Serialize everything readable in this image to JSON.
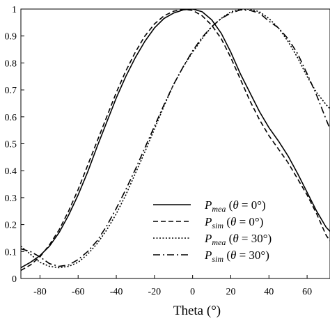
{
  "chart_data": {
    "type": "line",
    "title": "",
    "xlabel": "Theta (°)",
    "ylabel": "",
    "xlim": [
      -90,
      72
    ],
    "ylim": [
      0,
      1
    ],
    "xticks": [
      -80,
      -60,
      -40,
      -20,
      0,
      20,
      40,
      60
    ],
    "xtick_labels": [
      "-80",
      "-60",
      "-40",
      "-20",
      "0",
      "20",
      "40",
      "60"
    ],
    "yticks": [
      0,
      0.1,
      0.2,
      0.3,
      0.4,
      0.5,
      0.6,
      0.7,
      0.8,
      0.9,
      1
    ],
    "ytick_labels": [
      "0",
      "0.1",
      "0.2",
      "0.3",
      "0.4",
      "0.5",
      "0.6",
      "0.7",
      "0.8",
      "0.9",
      "1"
    ],
    "grid": false,
    "legend_placement": "bottom-right",
    "series": [
      {
        "name": "P_mea (θ = 0°)",
        "legend": {
          "main": "P",
          "sub": "mea",
          "cond": "θ",
          "value": "= 0°"
        },
        "style": "solid",
        "x": [
          -90,
          -85,
          -80,
          -75,
          -70,
          -65,
          -60,
          -55,
          -50,
          -45,
          -40,
          -35,
          -30,
          -25,
          -20,
          -15,
          -10,
          -5,
          0,
          5,
          10,
          15,
          20,
          25,
          30,
          35,
          40,
          45,
          50,
          55,
          60,
          65,
          70,
          72
        ],
        "y": [
          0.04,
          0.06,
          0.085,
          0.12,
          0.17,
          0.235,
          0.31,
          0.395,
          0.49,
          0.58,
          0.67,
          0.75,
          0.82,
          0.88,
          0.93,
          0.965,
          0.985,
          0.997,
          1.0,
          0.99,
          0.96,
          0.91,
          0.84,
          0.76,
          0.69,
          0.62,
          0.56,
          0.51,
          0.455,
          0.39,
          0.32,
          0.25,
          0.19,
          0.175
        ]
      },
      {
        "name": "P_sim (θ = 0°)",
        "legend": {
          "main": "P",
          "sub": "sim",
          "cond": "θ",
          "value": "= 0°"
        },
        "style": "dashed",
        "x": [
          -90,
          -85,
          -80,
          -75,
          -70,
          -65,
          -60,
          -55,
          -50,
          -45,
          -40,
          -35,
          -30,
          -25,
          -20,
          -15,
          -10,
          -5,
          0,
          5,
          10,
          15,
          20,
          25,
          30,
          35,
          40,
          45,
          50,
          55,
          60,
          65,
          70,
          72
        ],
        "y": [
          0.03,
          0.05,
          0.08,
          0.125,
          0.18,
          0.25,
          0.33,
          0.42,
          0.51,
          0.6,
          0.69,
          0.77,
          0.84,
          0.9,
          0.945,
          0.975,
          0.992,
          0.999,
          0.995,
          0.975,
          0.94,
          0.89,
          0.82,
          0.74,
          0.66,
          0.59,
          0.53,
          0.48,
          0.43,
          0.37,
          0.31,
          0.24,
          0.16,
          0.14
        ]
      },
      {
        "name": "P_mea (θ = 30°)",
        "legend": {
          "main": "P",
          "sub": "mea",
          "cond": "θ",
          "value": "= 30°"
        },
        "style": "dotted",
        "x": [
          -90,
          -85,
          -80,
          -75,
          -70,
          -65,
          -60,
          -55,
          -50,
          -45,
          -40,
          -35,
          -30,
          -25,
          -20,
          -15,
          -10,
          -5,
          0,
          5,
          10,
          15,
          20,
          25,
          30,
          35,
          40,
          45,
          50,
          55,
          60,
          65,
          70,
          72
        ],
        "y": [
          0.12,
          0.09,
          0.06,
          0.045,
          0.04,
          0.045,
          0.06,
          0.09,
          0.13,
          0.18,
          0.24,
          0.31,
          0.39,
          0.47,
          0.555,
          0.64,
          0.72,
          0.785,
          0.84,
          0.89,
          0.935,
          0.965,
          0.99,
          0.998,
          1.0,
          0.99,
          0.965,
          0.93,
          0.88,
          0.82,
          0.75,
          0.69,
          0.645,
          0.63
        ]
      },
      {
        "name": "P_sim (θ = 30°)",
        "legend": {
          "main": "P",
          "sub": "sim",
          "cond": "θ",
          "value": "= 30°"
        },
        "style": "dashdot",
        "x": [
          -90,
          -85,
          -80,
          -75,
          -70,
          -65,
          -60,
          -55,
          -50,
          -45,
          -40,
          -35,
          -30,
          -25,
          -20,
          -15,
          -10,
          -5,
          0,
          5,
          10,
          15,
          20,
          25,
          30,
          35,
          40,
          45,
          50,
          55,
          60,
          65,
          70,
          72
        ],
        "y": [
          0.11,
          0.1,
          0.08,
          0.055,
          0.045,
          0.05,
          0.07,
          0.1,
          0.14,
          0.195,
          0.26,
          0.33,
          0.405,
          0.485,
          0.565,
          0.645,
          0.72,
          0.785,
          0.845,
          0.895,
          0.935,
          0.965,
          0.985,
          0.997,
          0.995,
          0.985,
          0.955,
          0.93,
          0.89,
          0.835,
          0.76,
          0.68,
          0.59,
          0.555
        ]
      }
    ]
  }
}
